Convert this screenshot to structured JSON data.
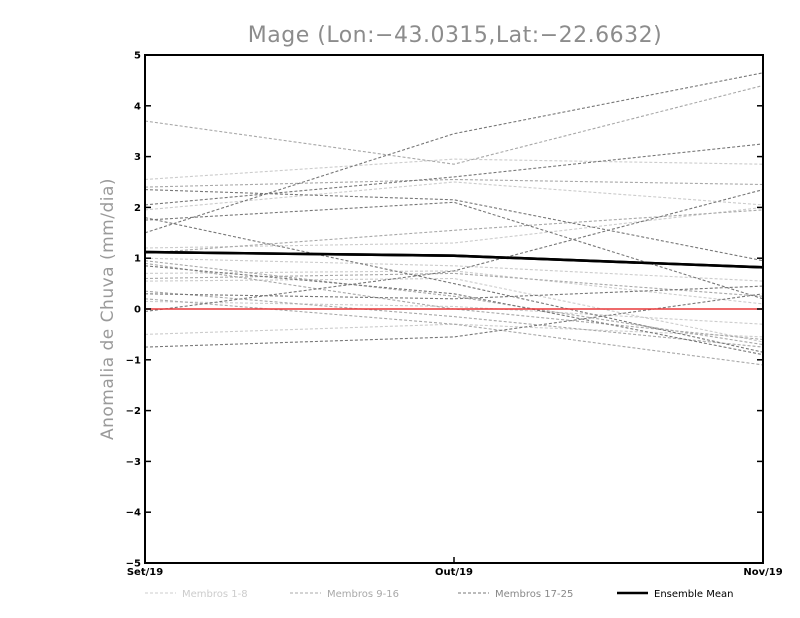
{
  "chart_data": {
    "type": "line",
    "title": "Mage (Lon:−43.0315,Lat:−22.6632)",
    "xlabel": "",
    "ylabel": "Anomalia de Chuva (mm/dia)",
    "categories": [
      "Set/19",
      "Out/19",
      "Nov/19"
    ],
    "ylim": [
      -5,
      5
    ],
    "yticks": [
      "−5",
      "−4",
      "−3",
      "−2",
      "−1",
      "0",
      "1",
      "2",
      "3",
      "4",
      "5"
    ],
    "grid": false,
    "legend_position": "bottom",
    "series": [
      {
        "group": "Membros 1-8",
        "values": [
          2.55,
          2.95,
          2.85
        ]
      },
      {
        "group": "Membros 1-8",
        "values": [
          1.95,
          2.5,
          2.05
        ]
      },
      {
        "group": "Membros 1-8",
        "values": [
          1.2,
          1.3,
          2.0
        ]
      },
      {
        "group": "Membros 1-8",
        "values": [
          1.0,
          0.85,
          0.55
        ]
      },
      {
        "group": "Membros 1-8",
        "values": [
          0.7,
          0.75,
          0.1
        ]
      },
      {
        "group": "Membros 1-8",
        "values": [
          0.15,
          0.05,
          -0.3
        ]
      },
      {
        "group": "Membros 1-8",
        "values": [
          -0.5,
          -0.3,
          -0.55
        ]
      },
      {
        "group": "Membros 1-8",
        "values": [
          0.55,
          0.6,
          -0.65
        ]
      },
      {
        "group": "Membros 9-16",
        "values": [
          3.7,
          2.85,
          4.4
        ]
      },
      {
        "group": "Membros 9-16",
        "values": [
          2.4,
          2.55,
          2.45
        ]
      },
      {
        "group": "Membros 9-16",
        "values": [
          1.1,
          1.55,
          1.95
        ]
      },
      {
        "group": "Membros 9-16",
        "values": [
          0.95,
          0.25,
          -0.7
        ]
      },
      {
        "group": "Membros 9-16",
        "values": [
          0.6,
          0.7,
          0.25
        ]
      },
      {
        "group": "Membros 9-16",
        "values": [
          0.35,
          -0.15,
          -0.75
        ]
      },
      {
        "group": "Membros 9-16",
        "values": [
          0.2,
          -0.3,
          -1.1
        ]
      },
      {
        "group": "Membros 9-16",
        "values": [
          0.9,
          0.0,
          -0.6
        ]
      },
      {
        "group": "Membros 17-25",
        "values": [
          1.5,
          3.45,
          4.65
        ]
      },
      {
        "group": "Membros 17-25",
        "values": [
          2.05,
          2.6,
          3.25
        ]
      },
      {
        "group": "Membros 17-25",
        "values": [
          2.35,
          2.15,
          0.95
        ]
      },
      {
        "group": "Membros 17-25",
        "values": [
          1.75,
          2.1,
          0.2
        ]
      },
      {
        "group": "Membros 17-25",
        "values": [
          1.8,
          0.5,
          -0.85
        ]
      },
      {
        "group": "Membros 17-25",
        "values": [
          -0.05,
          0.75,
          2.35
        ]
      },
      {
        "group": "Membros 17-25",
        "values": [
          0.3,
          0.2,
          0.45
        ]
      },
      {
        "group": "Membros 17-25",
        "values": [
          -0.75,
          -0.55,
          0.3
        ]
      },
      {
        "group": "Membros 17-25",
        "values": [
          0.85,
          0.3,
          -0.9
        ]
      },
      {
        "group": "Ensemble Mean",
        "values": [
          1.12,
          1.05,
          0.82
        ]
      }
    ],
    "reference_line": {
      "value": 0,
      "color": "#e8383a"
    },
    "group_styles": {
      "Membros 1-8": {
        "color": "#cccccc"
      },
      "Membros 9-16": {
        "color": "#a8a8a8"
      },
      "Membros 17-25": {
        "color": "#777777"
      },
      "Ensemble Mean": {
        "color": "#000000"
      }
    },
    "legend": [
      {
        "label": "Membros 1-8",
        "color": "#cccccc",
        "text_color": "#cccccc"
      },
      {
        "label": "Membros 9-16",
        "color": "#a8a8a8",
        "text_color": "#a8a8a8"
      },
      {
        "label": "Membros 17-25",
        "color": "#777777",
        "text_color": "#888888"
      },
      {
        "label": "Ensemble Mean",
        "color": "#000000",
        "text_color": "#000000"
      }
    ]
  }
}
